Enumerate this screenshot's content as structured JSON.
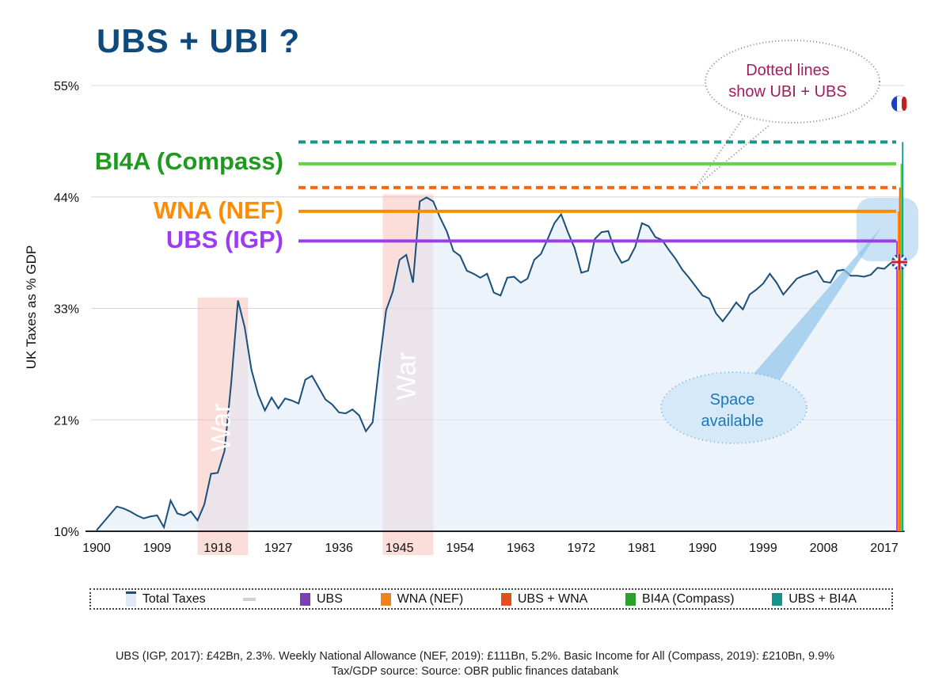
{
  "title": "UBS + UBI ?",
  "labels": {
    "bi4a": "BI4A (Compass)",
    "wna": "WNA (NEF)",
    "ubs": "UBS (IGP)"
  },
  "callouts": {
    "dotted": [
      "Dotted lines",
      "show UBI + UBS"
    ],
    "space": [
      "Space",
      "available"
    ]
  },
  "flags": [
    "france-flag-icon",
    "uk-flag-icon"
  ],
  "legend": [
    {
      "label": "Total Taxes",
      "color": "#dfe9f7",
      "edge": "#1a4f7a"
    },
    {
      "label": "",
      "color": "#d0d0d0"
    },
    {
      "label": "UBS",
      "color": "#7b3fb0"
    },
    {
      "label": "WNA (NEF)",
      "color": "#f0821e"
    },
    {
      "label": "UBS + WNA",
      "color": "#e0501a"
    },
    {
      "label": "BI4A (Compass)",
      "color": "#2e9e2e"
    },
    {
      "label": "UBS + BI4A",
      "color": "#13938e"
    }
  ],
  "footer": [
    "UBS (IGP, 2017): £42Bn, 2.3%. Weekly National Allowance (NEF, 2019): £111Bn, 5.2%. Basic Income for All (Compass, 2019): £210Bn, 9.9%",
    "Tax/GDP source: Source: OBR public finances databank"
  ],
  "chart_data": {
    "type": "area",
    "title": "UBS + UBI ?",
    "xlabel": "",
    "ylabel": "UK Taxes as % GDP",
    "xlim": [
      1900,
      2020
    ],
    "ylim": [
      10,
      55
    ],
    "x_ticks": [
      "1900",
      "1909",
      "1918",
      "1927",
      "1936",
      "1945",
      "1954",
      "1963",
      "1972",
      "1981",
      "1990",
      "1999",
      "2008",
      "2017"
    ],
    "y_ticks": [
      {
        "value": 10,
        "label": "10%"
      },
      {
        "value": 21.25,
        "label": "21%"
      },
      {
        "value": 32.5,
        "label": "33%"
      },
      {
        "value": 43.75,
        "label": "44%"
      },
      {
        "value": 55,
        "label": "55%"
      }
    ],
    "grid": true,
    "legend_position": "bottom",
    "shaded_periods": [
      {
        "label": "War",
        "from": 1915,
        "to": 1922.5
      },
      {
        "label": "War",
        "from": 1942.5,
        "to": 1950
      }
    ],
    "series": [
      {
        "name": "Total Taxes",
        "color": "#1a4f7a",
        "x_start": 1900,
        "values": [
          10.1,
          10.9,
          11.7,
          12.5,
          12.3,
          12.0,
          11.6,
          11.3,
          11.5,
          11.6,
          10.4,
          13.1,
          11.8,
          11.6,
          12.0,
          11.1,
          12.7,
          15.8,
          15.9,
          18.1,
          25.0,
          33.3,
          30.6,
          26.3,
          23.8,
          22.2,
          23.5,
          22.4,
          23.4,
          23.2,
          22.9,
          25.3,
          25.7,
          24.5,
          23.3,
          22.8,
          22.0,
          21.9,
          22.3,
          21.7,
          20.1,
          21.0,
          26.9,
          32.3,
          34.2,
          37.4,
          37.9,
          35.1,
          43.3,
          43.7,
          43.3,
          41.7,
          40.3,
          38.3,
          37.8,
          36.3,
          36.0,
          35.6,
          36.0,
          34.1,
          33.8,
          35.6,
          35.7,
          35.1,
          35.5,
          37.4,
          38.0,
          39.5,
          41.1,
          42.0,
          40.2,
          38.6,
          36.1,
          36.3,
          39.5,
          40.2,
          40.3,
          38.3,
          37.1,
          37.4,
          38.7,
          41.1,
          40.8,
          39.7,
          39.4,
          38.4,
          37.5,
          36.4,
          35.6,
          34.7,
          33.8,
          33.5,
          32.0,
          31.2,
          32.1,
          33.1,
          32.4,
          33.9,
          34.4,
          35.0,
          36.0,
          35.1,
          33.9,
          34.7,
          35.5,
          35.8,
          36.0,
          36.3,
          35.2,
          35.1,
          36.3,
          36.4,
          35.8,
          35.8,
          35.7,
          35.9,
          36.6,
          36.5,
          37.1,
          37.2
        ]
      },
      {
        "name": "UBS",
        "color": "#9b3cf0",
        "value": 39.3,
        "style": "solid"
      },
      {
        "name": "WNA (NEF)",
        "color": "#ff8c00",
        "value": 42.3,
        "style": "solid"
      },
      {
        "name": "UBS + WNA",
        "color": "#ff6410",
        "value": 44.7,
        "style": "dashed"
      },
      {
        "name": "BI4A (Compass)",
        "color": "#5fd63a",
        "value": 47.1,
        "style": "solid"
      },
      {
        "name": "UBS + BI4A",
        "color": "#14958f",
        "value": 49.3,
        "style": "dashed"
      }
    ]
  }
}
